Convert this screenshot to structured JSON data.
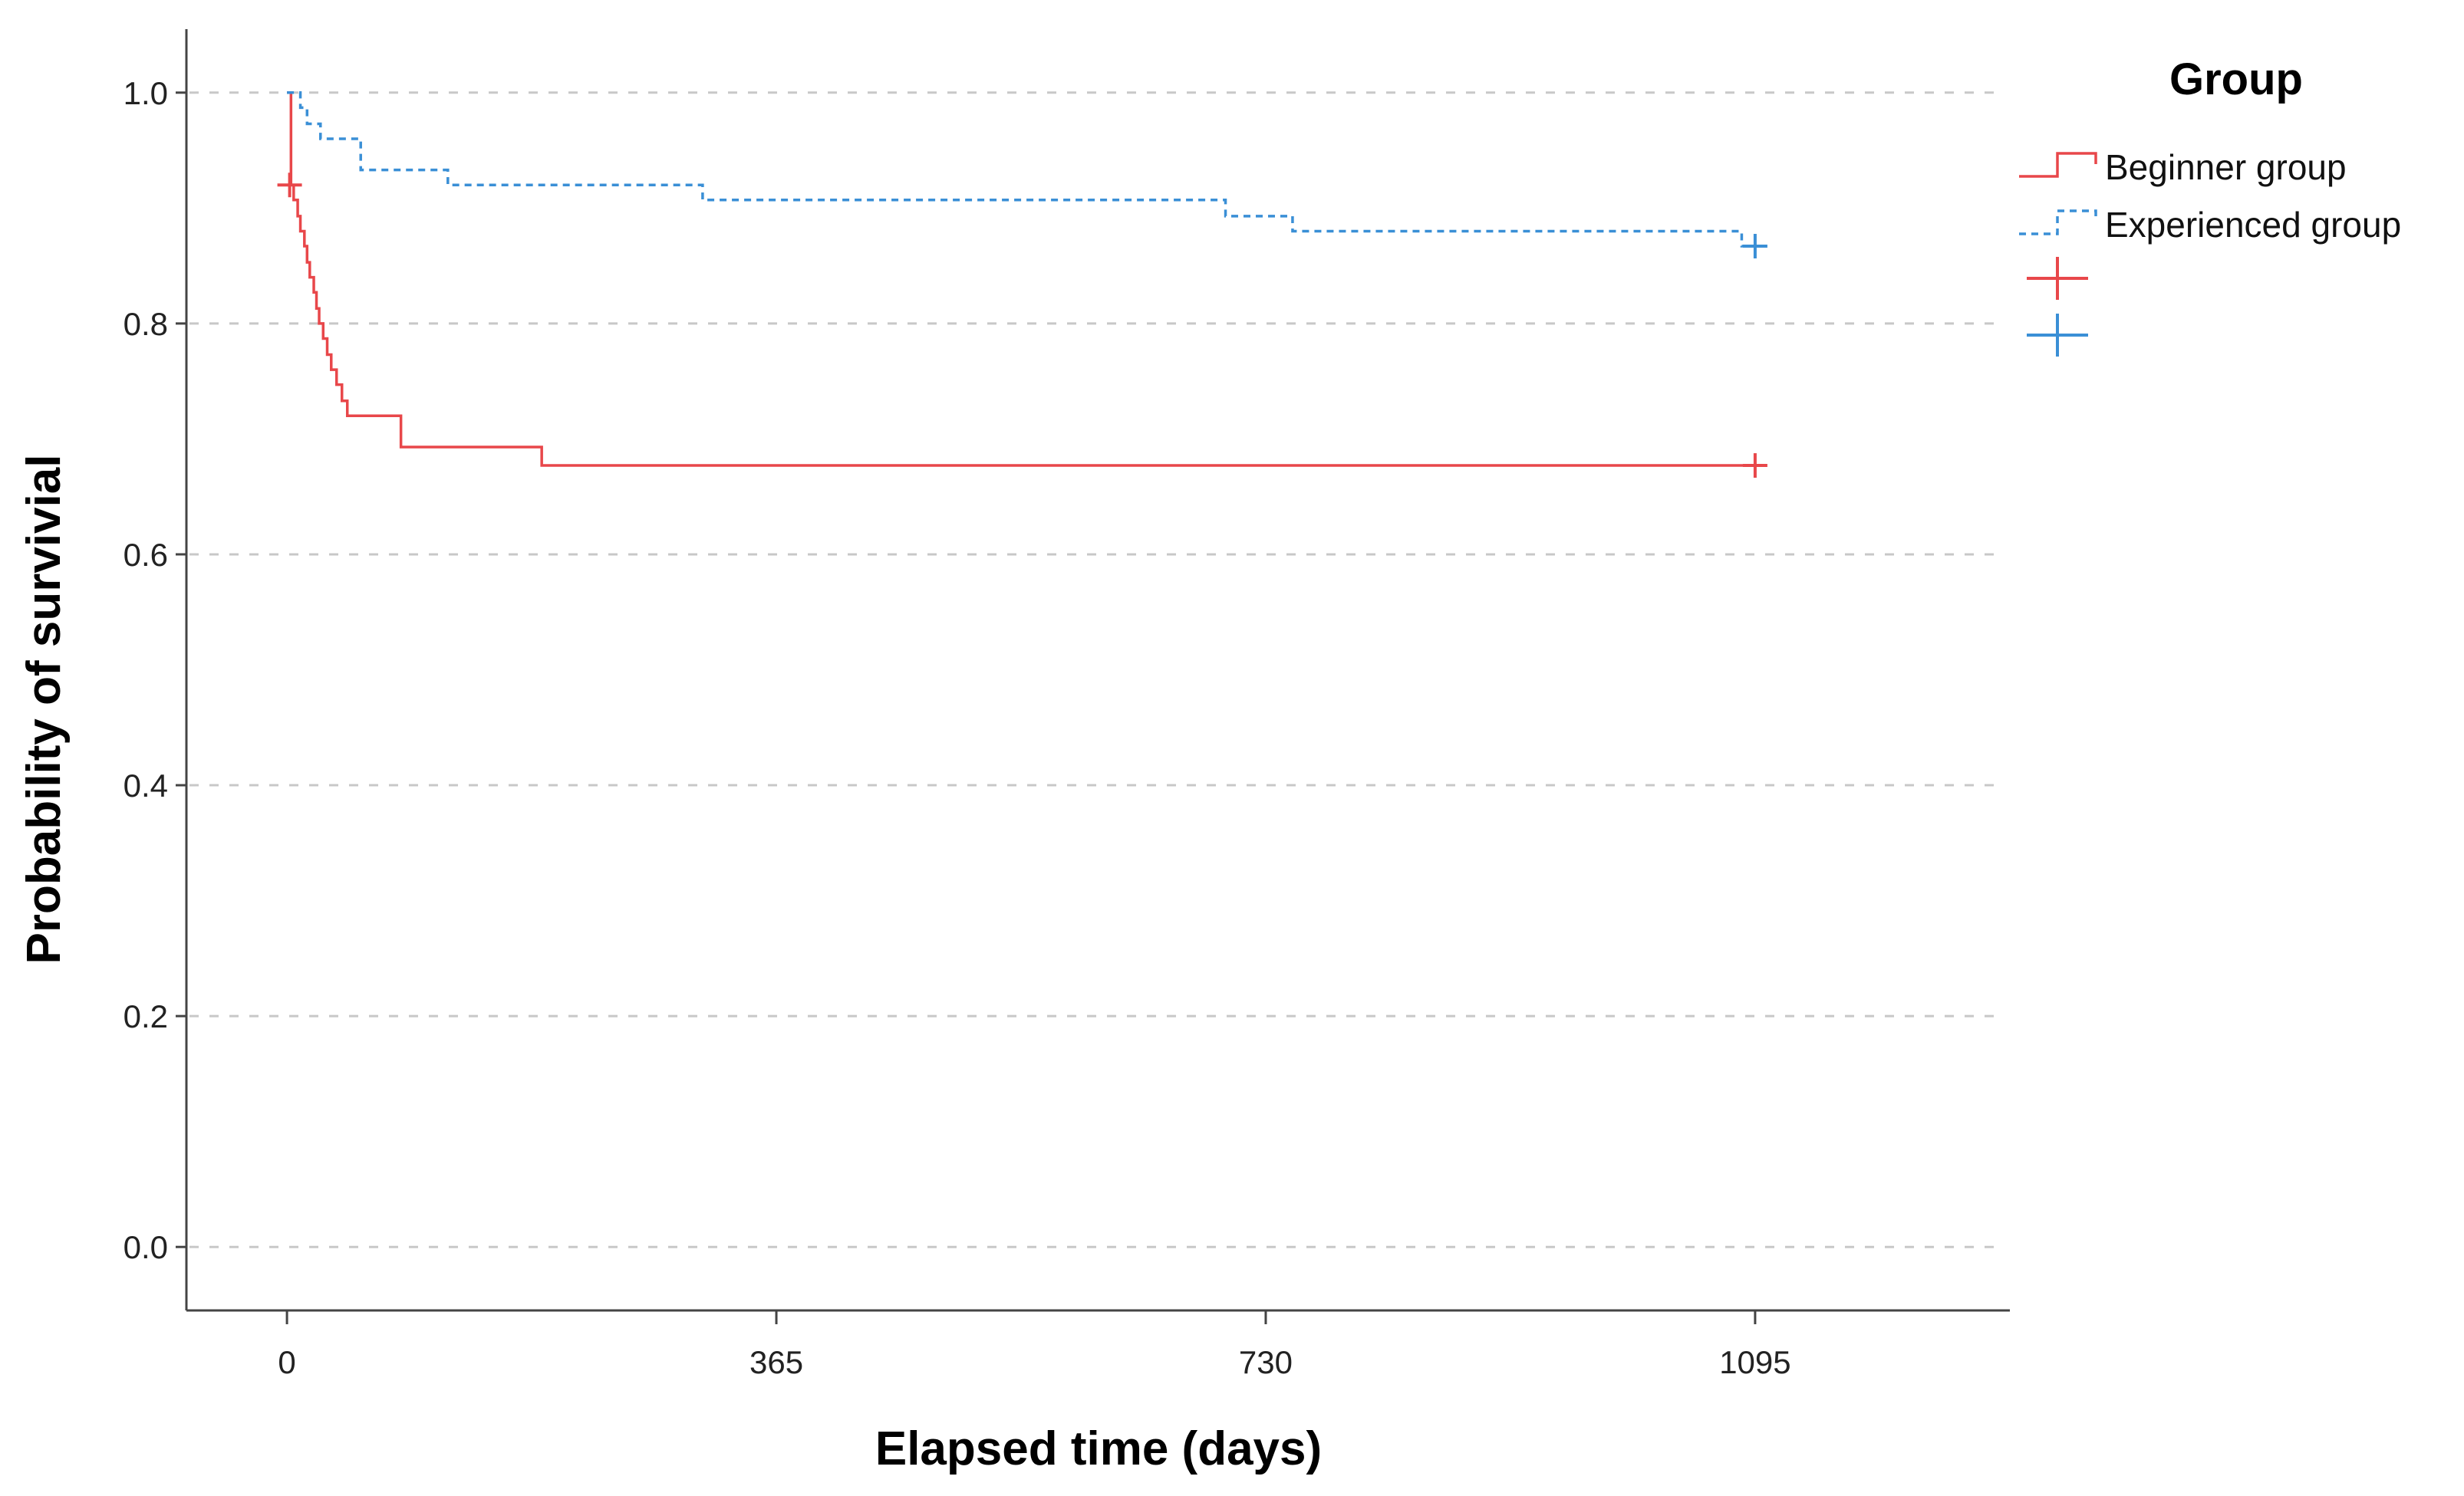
{
  "chart_data": {
    "type": "line",
    "subtype": "kaplan-meier step",
    "xlabel": "Elapsed time (days)",
    "ylabel": "Probability of survivial",
    "xlim": [
      -75,
      1285
    ],
    "ylim": [
      -0.055,
      1.055
    ],
    "x_ticks": [
      0,
      365,
      730,
      1095
    ],
    "y_ticks": [
      0.0,
      0.2,
      0.4,
      0.6,
      0.8,
      1.0
    ],
    "y_tick_labels": [
      "0.0",
      "0.2",
      "0.4",
      "0.6",
      "0.8",
      "1.0"
    ],
    "grid": "horizontal dashed",
    "legend": {
      "title": "Group",
      "placement": "top-right outside",
      "entries": [
        "Beginner group",
        "Experienced group",
        "",
        ""
      ]
    },
    "series": [
      {
        "name": "Beginner group",
        "color": "#e8474a",
        "style": "solid",
        "steps": [
          [
            0,
            1.0
          ],
          [
            3,
            0.92
          ],
          [
            5,
            0.907
          ],
          [
            8,
            0.893
          ],
          [
            10,
            0.88
          ],
          [
            13,
            0.867
          ],
          [
            15,
            0.853
          ],
          [
            17,
            0.84
          ],
          [
            20,
            0.827
          ],
          [
            22,
            0.813
          ],
          [
            24,
            0.8
          ],
          [
            27,
            0.787
          ],
          [
            30,
            0.773
          ],
          [
            33,
            0.76
          ],
          [
            37,
            0.747
          ],
          [
            41,
            0.733
          ],
          [
            45,
            0.72
          ],
          [
            85,
            0.693
          ],
          [
            190,
            0.677
          ],
          [
            1095,
            0.677
          ]
        ],
        "censored": [
          [
            2,
            0.92
          ],
          [
            1095,
            0.677
          ]
        ]
      },
      {
        "name": "Experienced group",
        "color": "#3a8fd6",
        "style": "dashed",
        "steps": [
          [
            0,
            1.0
          ],
          [
            10,
            0.987
          ],
          [
            15,
            0.973
          ],
          [
            25,
            0.96
          ],
          [
            55,
            0.933
          ],
          [
            120,
            0.92
          ],
          [
            310,
            0.907
          ],
          [
            700,
            0.893
          ],
          [
            750,
            0.88
          ],
          [
            1085,
            0.867
          ],
          [
            1095,
            0.867
          ]
        ],
        "censored": [
          [
            1095,
            0.867
          ]
        ]
      }
    ]
  }
}
